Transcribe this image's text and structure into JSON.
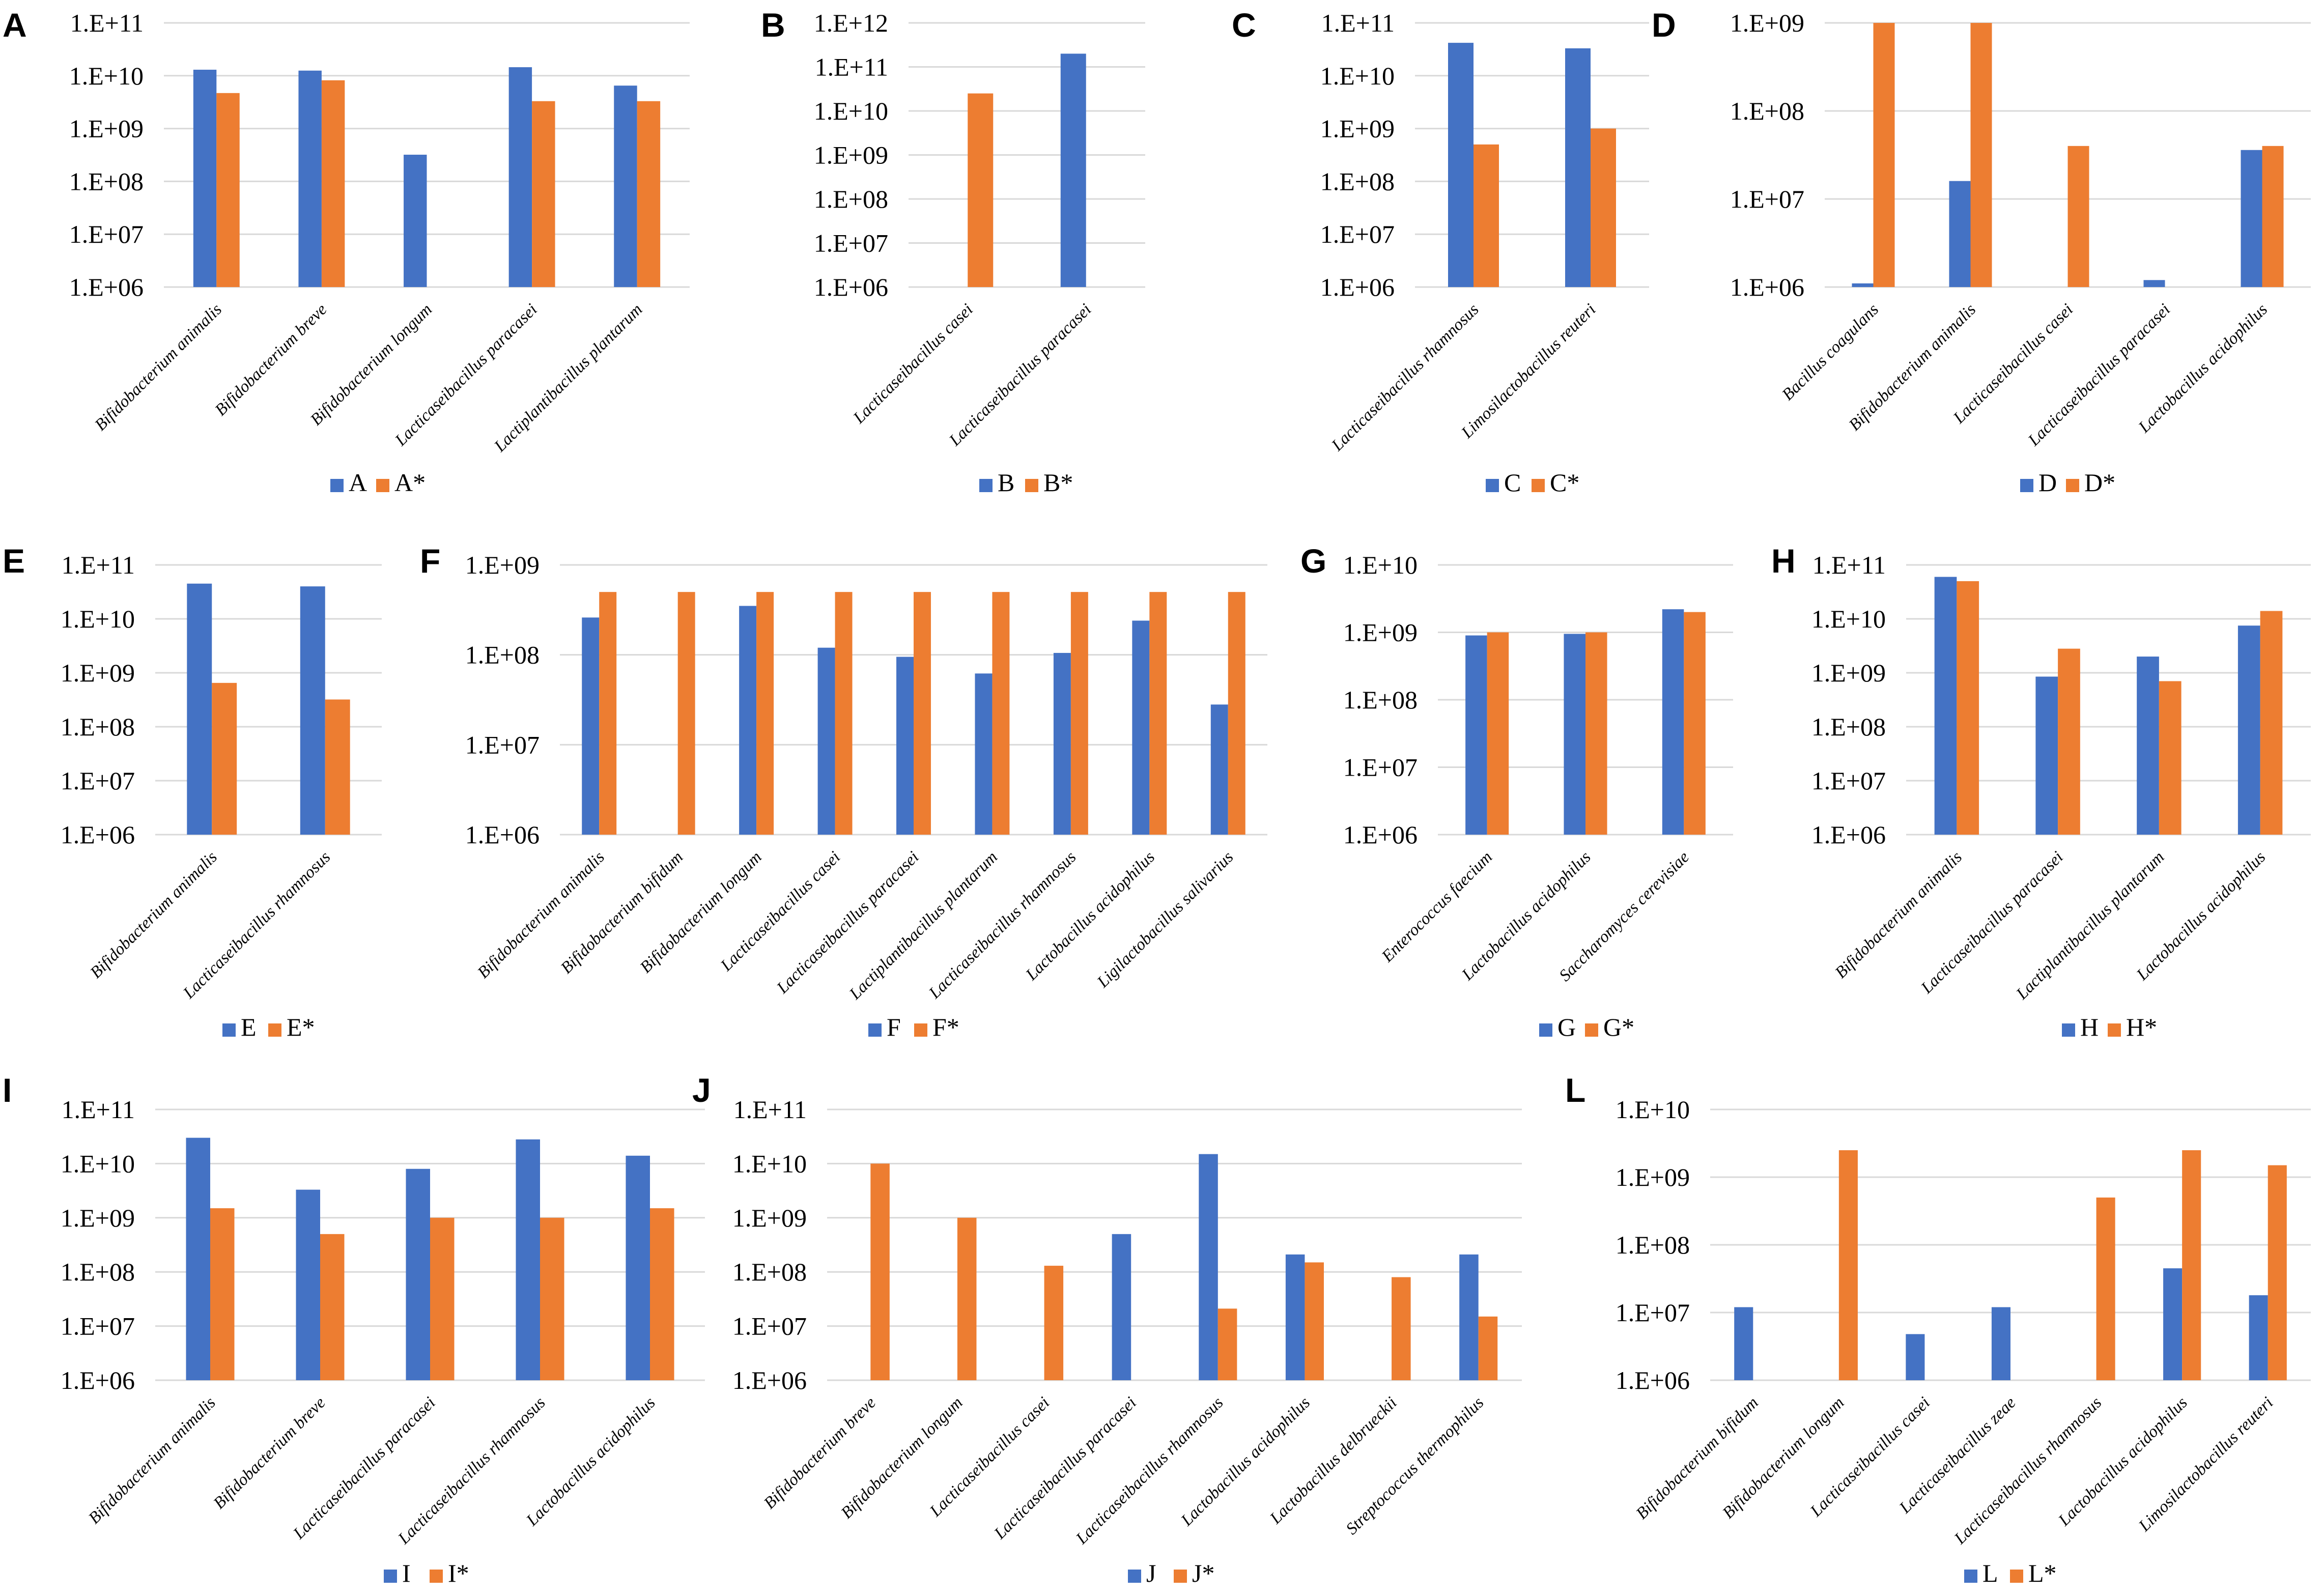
{
  "colors": {
    "series_1": "#4472c4",
    "series_2": "#ed7d31"
  },
  "chart_data": [
    {
      "panel": "A",
      "type": "bar",
      "scale": "log",
      "yticks": [
        "1.E+06",
        "1.E+07",
        "1.E+08",
        "1.E+09",
        "1.E+10",
        "1.E+11"
      ],
      "ylim": [
        1000000,
        100000000000
      ],
      "categories": [
        "Bifidobacterium animalis",
        "Bifidobacterium breve",
        "Bifidobacterium longum",
        "Lacticaseibacillus paracasei",
        "Lactiplantibacillus plantarum"
      ],
      "series": [
        {
          "name": "A",
          "values": [
            13000000000,
            12500000000,
            320000000,
            14500000000,
            6500000000
          ]
        },
        {
          "name": "A*",
          "values": [
            4700000000,
            8200000000,
            null,
            3300000000,
            3300000000
          ]
        }
      ]
    },
    {
      "panel": "B",
      "type": "bar",
      "scale": "log",
      "yticks": [
        "1.E+06",
        "1.E+07",
        "1.E+08",
        "1.E+09",
        "1.E+10",
        "1.E+11",
        "1.E+12"
      ],
      "ylim": [
        1000000,
        1000000000000
      ],
      "categories": [
        "Lacticaseibacillus casei",
        "Lacticaseibacillus paracasei"
      ],
      "series": [
        {
          "name": "B",
          "values": [
            null,
            200000000000
          ]
        },
        {
          "name": "B*",
          "values": [
            25000000000,
            null
          ]
        }
      ]
    },
    {
      "panel": "C",
      "type": "bar",
      "scale": "log",
      "yticks": [
        "1.E+06",
        "1.E+07",
        "1.E+08",
        "1.E+09",
        "1.E+10",
        "1.E+11"
      ],
      "ylim": [
        1000000,
        100000000000
      ],
      "categories": [
        "Lacticaseibacillus rhamnosus",
        "Limosilactobacillus reuteri"
      ],
      "series": [
        {
          "name": "C",
          "values": [
            42000000000,
            33000000000
          ]
        },
        {
          "name": "C*",
          "values": [
            500000000,
            1000000000
          ]
        }
      ]
    },
    {
      "panel": "D",
      "type": "bar",
      "scale": "log",
      "yticks": [
        "1.E+06",
        "1.E+07",
        "1.E+08",
        "1.E+09"
      ],
      "ylim": [
        1000000,
        1000000000
      ],
      "categories": [
        "Bacillus coagulans",
        "Bifidobacterium animalis",
        "Lacticaseibacillus casei",
        "Lacticaseibacillus paracasei",
        "Lactobacillus acidophilus"
      ],
      "series": [
        {
          "name": "D",
          "values": [
            1100000,
            16000000,
            null,
            1200000,
            36000000
          ]
        },
        {
          "name": "D*",
          "values": [
            1000000000,
            1000000000,
            40000000,
            null,
            40000000
          ]
        }
      ]
    },
    {
      "panel": "E",
      "type": "bar",
      "scale": "log",
      "yticks": [
        "1.E+06",
        "1.E+07",
        "1.E+08",
        "1.E+09",
        "1.E+10",
        "1.E+11"
      ],
      "ylim": [
        1000000,
        100000000000
      ],
      "categories": [
        "Bifidobacterium animalis",
        "Lacticaseibacillus rhamnosus"
      ],
      "series": [
        {
          "name": "E",
          "values": [
            45000000000,
            40000000000
          ]
        },
        {
          "name": "E*",
          "values": [
            650000000,
            320000000
          ]
        }
      ]
    },
    {
      "panel": "F",
      "type": "bar",
      "scale": "log",
      "yticks": [
        "1.E+06",
        "1.E+07",
        "1.E+08",
        "1.E+09"
      ],
      "ylim": [
        1000000,
        1000000000
      ],
      "categories": [
        "Bifidobacterium animalis",
        "Bifidobacterium bifidum",
        "Bifidobacterium longum",
        "Lacticaseibacillus casei",
        "Lacticaseibacillus paracasei",
        "Lactiplantibacillus plantarum",
        "Lacticaseibacillus rhamnosus",
        "Lactobacillus acidophilus",
        "Ligilactobacillus salivarius"
      ],
      "series": [
        {
          "name": "F",
          "values": [
            260000000,
            null,
            350000000,
            120000000,
            95000000,
            62000000,
            105000000,
            240000000,
            28000000
          ]
        },
        {
          "name": "F*",
          "values": [
            500000000,
            500000000,
            500000000,
            500000000,
            500000000,
            500000000,
            500000000,
            500000000,
            500000000
          ]
        }
      ]
    },
    {
      "panel": "G",
      "type": "bar",
      "scale": "log",
      "yticks": [
        "1.E+06",
        "1.E+07",
        "1.E+08",
        "1.E+09",
        "1.E+10"
      ],
      "ylim": [
        1000000,
        10000000000
      ],
      "categories": [
        "Enterococcus faecium",
        "Lactobacillus acidophilus",
        "Saccharomyces cerevisiae"
      ],
      "series": [
        {
          "name": "G",
          "values": [
            900000000,
            950000000,
            2200000000
          ]
        },
        {
          "name": "G*",
          "values": [
            1000000000,
            1000000000,
            2000000000
          ]
        }
      ]
    },
    {
      "panel": "H",
      "type": "bar",
      "scale": "log",
      "yticks": [
        "1.E+06",
        "1.E+07",
        "1.E+08",
        "1.E+09",
        "1.E+10",
        "1.E+11"
      ],
      "ylim": [
        1000000,
        100000000000
      ],
      "categories": [
        "Bifidobacterium animalis",
        "Lacticaseibacillus paracasei",
        "Lactiplantibacillus plantarum",
        "Lactobacillus acidophilus"
      ],
      "series": [
        {
          "name": "H",
          "values": [
            60000000000,
            850000000,
            2000000000,
            7500000000
          ]
        },
        {
          "name": "H*",
          "values": [
            50000000000,
            2800000000,
            700000000,
            14000000000
          ]
        }
      ]
    },
    {
      "panel": "I",
      "type": "bar",
      "scale": "log",
      "yticks": [
        "1.E+06",
        "1.E+07",
        "1.E+08",
        "1.E+09",
        "1.E+10",
        "1.E+11"
      ],
      "ylim": [
        1000000,
        100000000000
      ],
      "categories": [
        "Bifidobacterium animalis",
        "Bifidobacterium breve",
        "Lacticaseibacillus paracasei",
        "Lacticaseibacillus rhamnosus",
        "Lactobacillus acidophilus"
      ],
      "series": [
        {
          "name": "I",
          "values": [
            30000000000,
            3300000000,
            8000000000,
            28000000000,
            14000000000
          ]
        },
        {
          "name": "I*",
          "values": [
            1500000000,
            500000000,
            1000000000,
            1000000000,
            1500000000
          ]
        }
      ]
    },
    {
      "panel": "J",
      "type": "bar",
      "scale": "log",
      "yticks": [
        "1.E+06",
        "1.E+07",
        "1.E+08",
        "1.E+09",
        "1.E+10",
        "1.E+11"
      ],
      "ylim": [
        1000000,
        100000000000
      ],
      "categories": [
        "Bifidobacterium breve",
        "Bifidobacterium longum",
        "Lacticaseibacillus casei",
        "Lacticaseibacillus paracasei",
        "Lacticaseibacillus rhamnosus",
        "Lactobacillus acidophilus",
        "Lactobacillus delbrueckii",
        "Streptococcus thermophilus"
      ],
      "series": [
        {
          "name": "J",
          "values": [
            null,
            null,
            null,
            500000000,
            15000000000,
            210000000,
            null,
            210000000
          ]
        },
        {
          "name": "J*",
          "values": [
            10000000000,
            1000000000,
            130000000,
            null,
            21000000,
            150000000,
            80000000,
            15000000
          ]
        }
      ]
    },
    {
      "panel": "L",
      "type": "bar",
      "scale": "log",
      "yticks": [
        "1.E+06",
        "1.E+07",
        "1.E+08",
        "1.E+09",
        "1.E+10"
      ],
      "ylim": [
        1000000,
        10000000000
      ],
      "categories": [
        "Bifidobacterium bifidum",
        "Bifidobacterium longum",
        "Lacticaseibacillus casei",
        "Lacticaseibacillus zeae",
        "Lacticaseibacillus rhamnosus",
        "Lactobacillus acidophilus",
        "Limosilactobacillus reuteri"
      ],
      "series": [
        {
          "name": "L",
          "values": [
            12000000,
            null,
            4800000,
            12000000,
            null,
            45000000,
            18000000
          ]
        },
        {
          "name": "L*",
          "values": [
            null,
            2500000000,
            null,
            null,
            500000000,
            2500000000,
            1500000000
          ]
        }
      ]
    }
  ]
}
